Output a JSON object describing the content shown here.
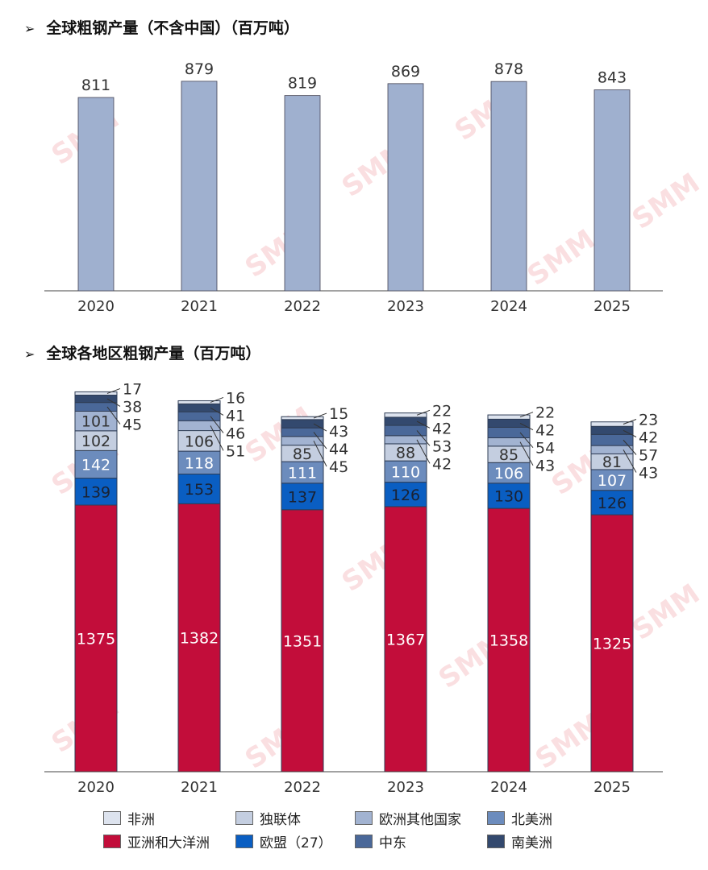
{
  "chart_data": [
    {
      "type": "bar",
      "title": "全球粗钢产量（不含中国）（百万吨）",
      "categories": [
        "2020",
        "2021",
        "2022",
        "2023",
        "2024",
        "2025"
      ],
      "values": [
        811,
        879,
        819,
        869,
        878,
        843
      ],
      "ylim": [
        0,
        960
      ],
      "color": "#9fb0cf",
      "grid": false
    },
    {
      "type": "stacked-bar",
      "title": "全球各地区粗钢产量（百万吨）",
      "categories": [
        "2020",
        "2021",
        "2022",
        "2023",
        "2024",
        "2025"
      ],
      "ylim": [
        0,
        2000
      ],
      "grid": false,
      "legend_position": "bottom",
      "series": [
        {
          "name": "亚洲和大洋洲",
          "color": "#c20d3a",
          "values": [
            1375,
            1382,
            1351,
            1367,
            1358,
            1325
          ]
        },
        {
          "name": "欧盟（27）",
          "color": "#0a5ec2",
          "values": [
            139,
            153,
            137,
            126,
            130,
            126
          ]
        },
        {
          "name": "北美洲",
          "color": "#6c8cbd",
          "values": [
            142,
            118,
            111,
            110,
            106,
            107
          ]
        },
        {
          "name": "独联体",
          "color": "#c4cee0",
          "values": [
            102,
            106,
            85,
            88,
            85,
            81
          ]
        },
        {
          "name": "欧洲其他国家",
          "color": "#a2b3d1",
          "values": [
            101,
            51,
            45,
            42,
            43,
            43
          ]
        },
        {
          "name": "中东",
          "color": "#4a6899",
          "values": [
            45,
            46,
            44,
            53,
            54,
            57
          ]
        },
        {
          "name": "南美洲",
          "color": "#33496e",
          "values": [
            38,
            41,
            43,
            42,
            42,
            42
          ]
        },
        {
          "name": "非洲",
          "color": "#dde3ee",
          "values": [
            17,
            16,
            15,
            22,
            22,
            23
          ]
        }
      ]
    }
  ],
  "legend_order": [
    7,
    3,
    4,
    2,
    0,
    1,
    5,
    6
  ],
  "watermark": "SMM"
}
